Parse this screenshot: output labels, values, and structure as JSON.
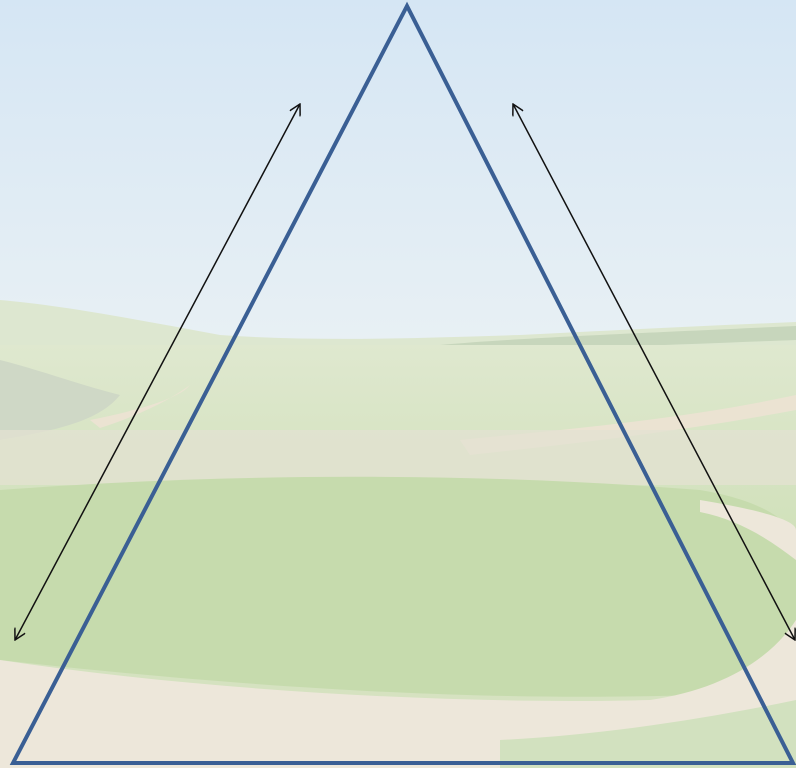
{
  "diagram": {
    "background": {
      "scene": "landscape-photo",
      "sky_color": "#d9e8f2",
      "field_color": "#d3e2bf",
      "path_color": "#ece6d8"
    },
    "triangle": {
      "stroke_color": "#3a5f94"
    },
    "arrows": {
      "stroke_color": "#111111",
      "count": 2,
      "style": "double-headed"
    }
  }
}
